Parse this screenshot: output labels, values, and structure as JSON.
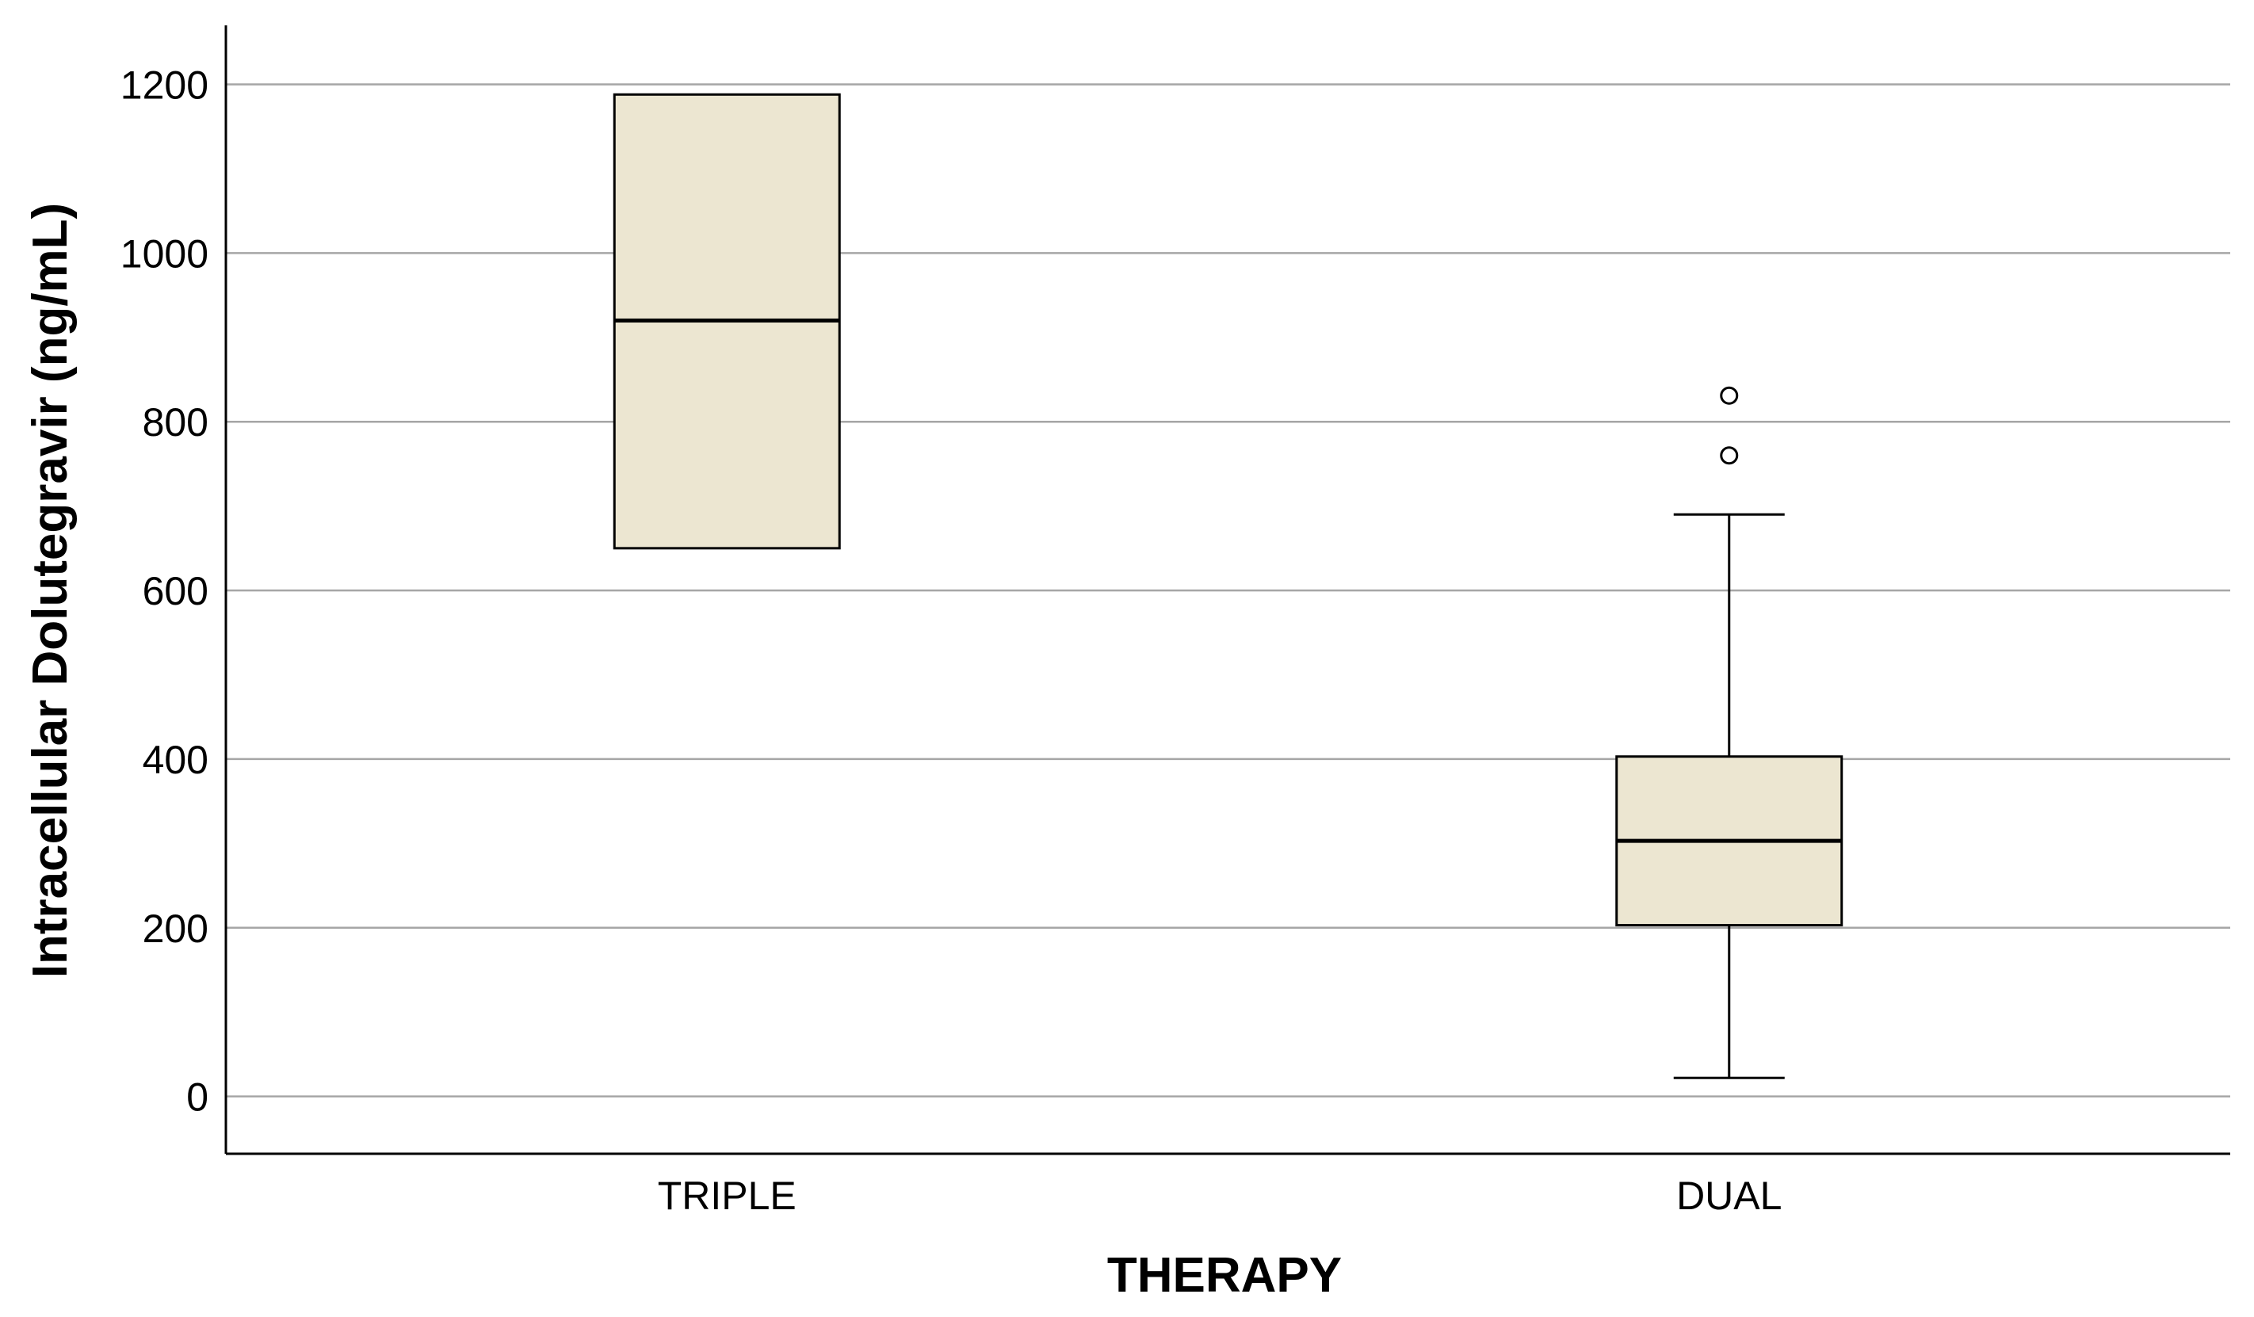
{
  "chart_data": {
    "type": "boxplot",
    "title": "",
    "xlabel": "THERAPY",
    "ylabel": "Intracellular Dolutegravir (ng/mL)",
    "ylim": [
      -68,
      1270
    ],
    "yticks": [
      0,
      200,
      400,
      600,
      800,
      1000,
      1200
    ],
    "grid": true,
    "categories": [
      "TRIPLE",
      "DUAL"
    ],
    "boxes": [
      {
        "category": "TRIPLE",
        "q1": 650,
        "median": 920,
        "q3": 1188,
        "whisker_low": null,
        "whisker_high": null,
        "outliers": []
      },
      {
        "category": "DUAL",
        "q1": 203,
        "median": 303,
        "q3": 403,
        "whisker_low": 22,
        "whisker_high": 690,
        "outliers": [
          760,
          831
        ]
      }
    ],
    "colors": {
      "box_fill": "#ece6d1",
      "box_stroke": "#000000",
      "grid": "#a6a6a6",
      "axis": "#000000"
    }
  }
}
